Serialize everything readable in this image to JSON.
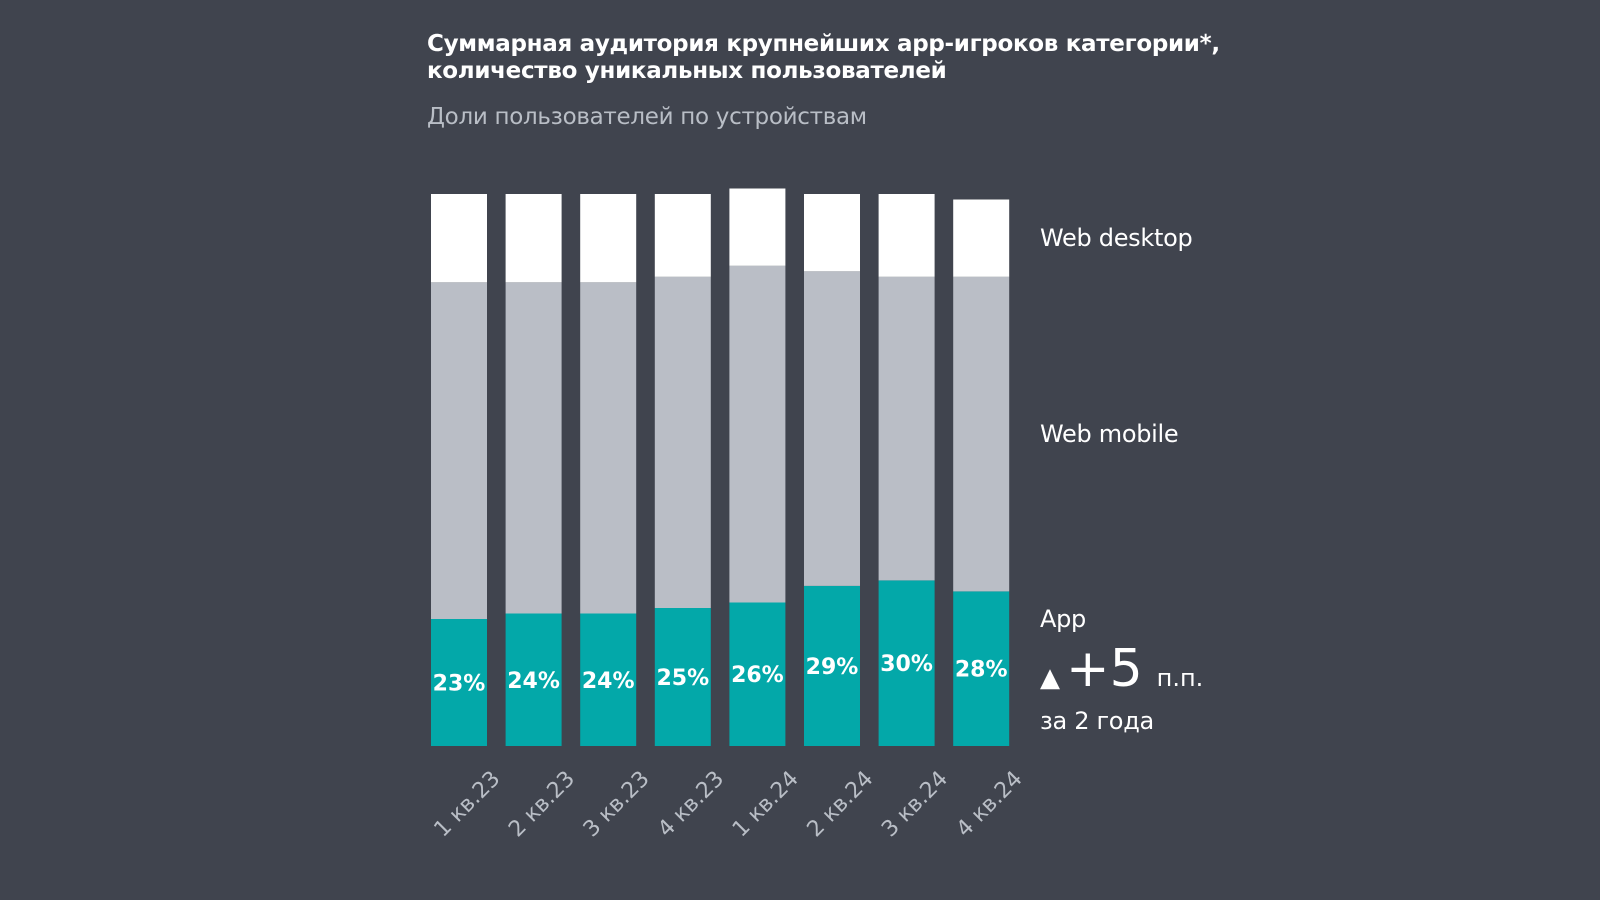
{
  "header": {
    "title_line1": "Суммарная аудитория крупнейших app-игроков категории*,",
    "title_line2": "количество уникальных пользователей",
    "subtitle": "Доли пользователей по устройствам"
  },
  "annotation": {
    "arrow": "▲",
    "value": "+5",
    "unit": "п.п.",
    "period": "за 2 года"
  },
  "colors": {
    "background": "#40444e",
    "app": "#03a8a9",
    "web_mobile": "#babec6",
    "web_desktop": "#ffffff",
    "tick_label": "#b9bec6"
  },
  "chart_data": {
    "type": "bar",
    "stacked": true,
    "normalized": true,
    "categories": [
      "1 кв.23",
      "2 кв.23",
      "3 кв.23",
      "4 кв.23",
      "1 кв.24",
      "2 кв.24",
      "3 кв.24",
      "4 кв.24"
    ],
    "series": [
      {
        "name": "App",
        "values": [
          23,
          24,
          24,
          25,
          26,
          29,
          30,
          28
        ],
        "data_labels": [
          "23%",
          "24%",
          "24%",
          "25%",
          "26%",
          "29%",
          "30%",
          "28%"
        ]
      },
      {
        "name": "Web mobile",
        "values": [
          61,
          60,
          60,
          60,
          61,
          57,
          55,
          57
        ]
      },
      {
        "name": "Web desktop",
        "values": [
          16,
          16,
          16,
          15,
          14,
          14,
          15,
          14
        ]
      }
    ],
    "ylim": [
      0,
      100
    ],
    "axes_visible": false,
    "legend_placement": "right"
  }
}
